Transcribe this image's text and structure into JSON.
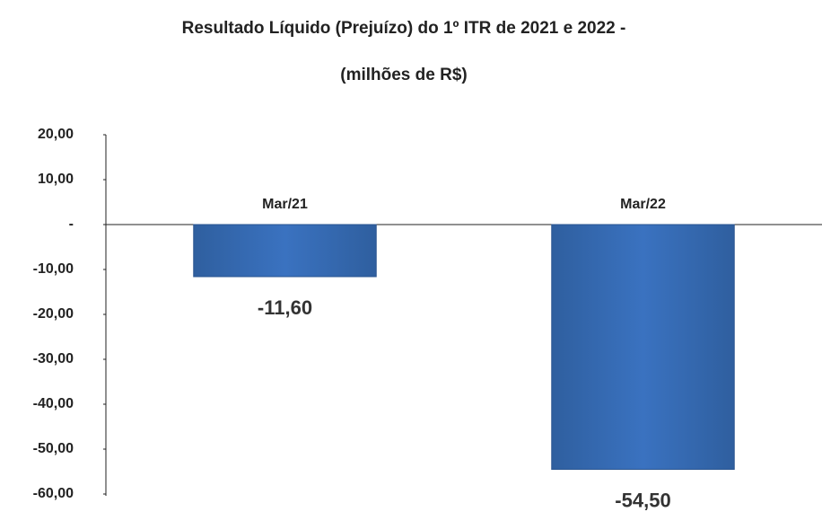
{
  "chart_data": {
    "type": "bar",
    "title": "Resultado Líquido (Prejuízo) do 1º ITR de 2021 e 2022 -",
    "subtitle": "(milhões de R$)",
    "categories": [
      "Mar/21",
      "Mar/22"
    ],
    "values": [
      -11.6,
      -54.5
    ],
    "value_labels": [
      "-11,60",
      "-54,50"
    ],
    "color": "#3a72c0",
    "ylim": [
      -60,
      20
    ],
    "yticks": [
      {
        "value": 20,
        "label": "20,00"
      },
      {
        "value": 10,
        "label": "10,00"
      },
      {
        "value": 0,
        "label": "-"
      },
      {
        "value": -10,
        "label": "-10,00"
      },
      {
        "value": -20,
        "label": "-20,00"
      },
      {
        "value": -30,
        "label": "-30,00"
      },
      {
        "value": -40,
        "label": "-40,00"
      },
      {
        "value": -50,
        "label": "-50,00"
      },
      {
        "value": -60,
        "label": "-60,00"
      }
    ],
    "grid": false
  }
}
